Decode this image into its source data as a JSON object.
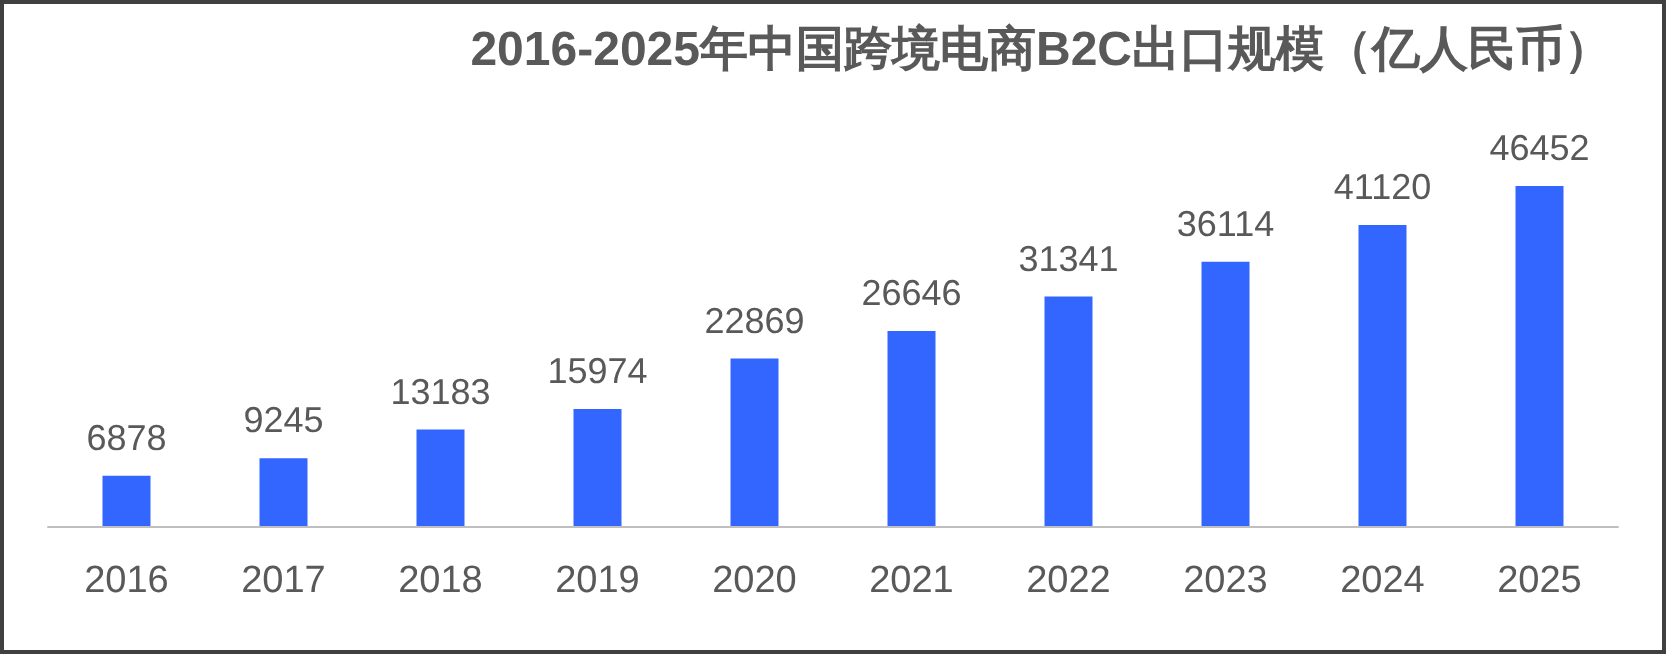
{
  "chart_data": {
    "type": "bar",
    "title": "2016-2025年中国跨境电商B2C出口规模（亿人民币）",
    "categories": [
      "2016",
      "2017",
      "2018",
      "2019",
      "2020",
      "2021",
      "2022",
      "2023",
      "2024",
      "2025"
    ],
    "values": [
      6878,
      9245,
      13183,
      15974,
      22869,
      26646,
      31341,
      36114,
      41120,
      46452
    ],
    "color": "#3366ff",
    "data_labels": true
  }
}
